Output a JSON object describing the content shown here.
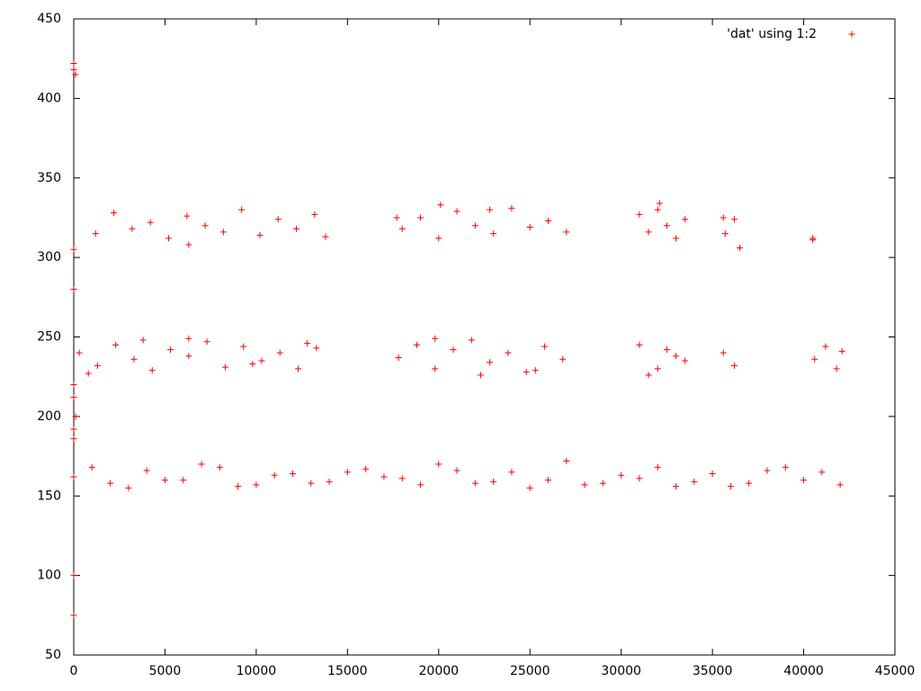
{
  "chart_data": {
    "type": "scatter",
    "xlim": [
      0,
      45000
    ],
    "xticks": [
      0,
      5000,
      10000,
      15000,
      20000,
      25000,
      30000,
      35000,
      40000,
      45000
    ],
    "ylim": [
      50,
      450
    ],
    "yticks": [
      50,
      100,
      150,
      200,
      250,
      300,
      350,
      400,
      450
    ],
    "legend": "top-right",
    "x": [
      0,
      0,
      100,
      0,
      0,
      0,
      0,
      100,
      0,
      0,
      0,
      0,
      0,
      2000,
      4000,
      6000,
      8000,
      10000,
      12000,
      14000,
      16000,
      18000,
      20000,
      22000,
      24000,
      26000,
      28000,
      30000,
      32000,
      34000,
      36000,
      38000,
      40000,
      42000,
      1000,
      3000,
      5000,
      7000,
      9000,
      11000,
      13000,
      15000,
      17000,
      19000,
      21000,
      23000,
      25000,
      27000,
      29000,
      31000,
      33000,
      35000,
      37000,
      39000,
      41000,
      300,
      1300,
      2300,
      3300,
      4300,
      5300,
      6300,
      7300,
      8300,
      9300,
      10300,
      11300,
      12300,
      13300,
      17800,
      18800,
      19800,
      20800,
      21800,
      22800,
      23800,
      24800,
      25800,
      26800,
      31000,
      32000,
      33000,
      31500,
      32500,
      33500,
      35600,
      36200,
      40600,
      41200,
      41800,
      42100,
      800,
      3800,
      6300,
      9800,
      12800,
      19800,
      22300,
      25300,
      1200,
      2200,
      3200,
      4200,
      5200,
      6200,
      7200,
      8200,
      9200,
      10200,
      11200,
      12200,
      13200,
      13800,
      18000,
      19000,
      20000,
      21000,
      22000,
      23000,
      24000,
      25000,
      26000,
      27000,
      17700,
      20100,
      22800,
      31000,
      31500,
      32000,
      32500,
      33000,
      33500,
      35600,
      35700,
      36200,
      36500,
      40500,
      40500,
      6300,
      32100
    ],
    "series": [
      {
        "name": "'dat' using 1:2",
        "color": "#ff0000",
        "values": [
          422,
          418,
          415,
          305,
          280,
          220,
          212,
          200,
          192,
          186,
          100,
          75,
          162,
          158,
          166,
          160,
          168,
          157,
          164,
          159,
          167,
          161,
          170,
          158,
          165,
          160,
          157,
          163,
          168,
          159,
          156,
          166,
          160,
          157,
          168,
          155,
          160,
          170,
          156,
          163,
          158,
          165,
          162,
          157,
          166,
          159,
          155,
          172,
          158,
          161,
          156,
          164,
          158,
          168,
          165,
          240,
          232,
          245,
          236,
          229,
          242,
          238,
          247,
          231,
          244,
          235,
          240,
          230,
          243,
          237,
          245,
          230,
          242,
          248,
          234,
          240,
          228,
          244,
          236,
          245,
          230,
          238,
          226,
          242,
          235,
          240,
          232,
          236,
          244,
          230,
          241,
          227,
          248,
          249,
          233,
          246,
          249,
          226,
          229,
          315,
          328,
          318,
          322,
          312,
          326,
          320,
          316,
          330,
          314,
          324,
          318,
          327,
          313,
          318,
          325,
          312,
          329,
          320,
          315,
          331,
          319,
          323,
          316,
          325,
          333,
          330,
          327,
          316,
          330,
          320,
          312,
          324,
          325,
          315,
          324,
          306,
          312,
          311,
          308,
          334
        ]
      }
    ]
  }
}
